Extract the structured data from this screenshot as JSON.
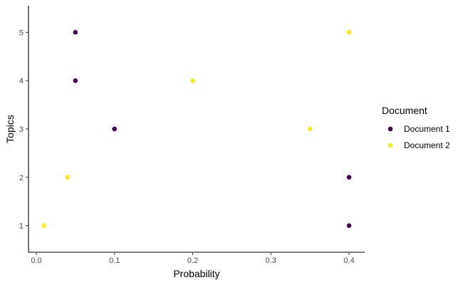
{
  "chart_data": {
    "type": "scatter",
    "title": "",
    "xlabel": "Probability",
    "ylabel": "Topics",
    "xlim": [
      -0.01,
      0.42
    ],
    "ylim": [
      0.45,
      5.55
    ],
    "x_ticks": [
      0.0,
      0.1,
      0.2,
      0.3,
      0.4
    ],
    "x_tick_labels": [
      "0.0",
      "0.1",
      "0.2",
      "0.3",
      "0.4"
    ],
    "y_ticks": [
      1,
      2,
      3,
      4,
      5
    ],
    "y_tick_labels": [
      "1",
      "2",
      "3",
      "4",
      "5"
    ],
    "grid": false,
    "legend": {
      "title": "Document",
      "position": "right"
    },
    "series": [
      {
        "name": "Document 1",
        "color": "#440154",
        "points": [
          {
            "x": 0.4,
            "y": 1
          },
          {
            "x": 0.4,
            "y": 2
          },
          {
            "x": 0.1,
            "y": 3
          },
          {
            "x": 0.05,
            "y": 4
          },
          {
            "x": 0.05,
            "y": 5
          }
        ]
      },
      {
        "name": "Document 2",
        "color": "#FDE725",
        "points": [
          {
            "x": 0.01,
            "y": 1
          },
          {
            "x": 0.04,
            "y": 2
          },
          {
            "x": 0.35,
            "y": 3
          },
          {
            "x": 0.2,
            "y": 4
          },
          {
            "x": 0.4,
            "y": 5
          }
        ]
      }
    ]
  }
}
